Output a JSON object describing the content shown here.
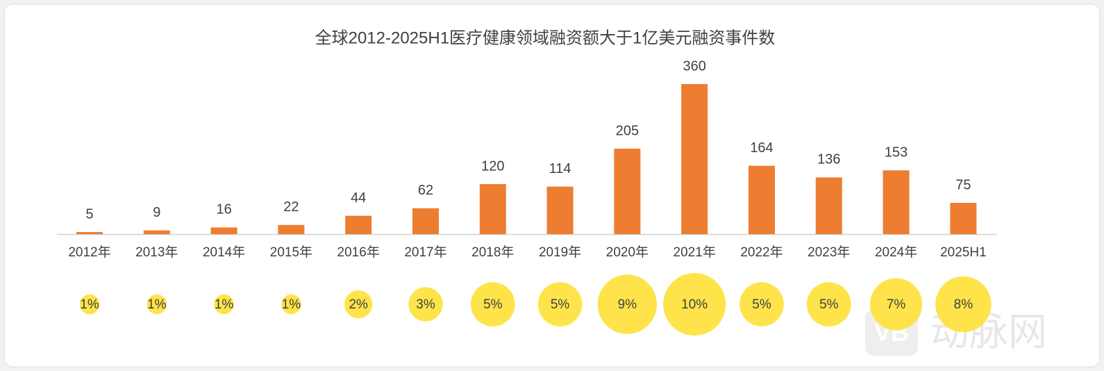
{
  "chart_data": [
    {
      "type": "bar",
      "title": "全球2012-2025H1医疗健康领域融资额大于1亿美元融资事件数",
      "categories": [
        "2012年",
        "2013年",
        "2014年",
        "2015年",
        "2016年",
        "2017年",
        "2018年",
        "2019年",
        "2020年",
        "2021年",
        "2022年",
        "2023年",
        "2024年",
        "2025H1"
      ],
      "values": [
        5,
        9,
        16,
        22,
        44,
        62,
        120,
        114,
        205,
        360,
        164,
        136,
        153,
        75
      ],
      "color": "#ed7d31"
    },
    {
      "type": "bubble",
      "values": [
        1,
        1,
        1,
        1,
        2,
        3,
        5,
        5,
        9,
        10,
        5,
        5,
        7,
        8
      ],
      "value_labels": [
        "1%",
        "1%",
        "1%",
        "1%",
        "2%",
        "3%",
        "5%",
        "5%",
        "9%",
        "10%",
        "5%",
        "5%",
        "7%",
        "8%"
      ],
      "color": "#fee44a"
    }
  ],
  "watermark": {
    "logo": "VB",
    "text": "动脉网"
  }
}
